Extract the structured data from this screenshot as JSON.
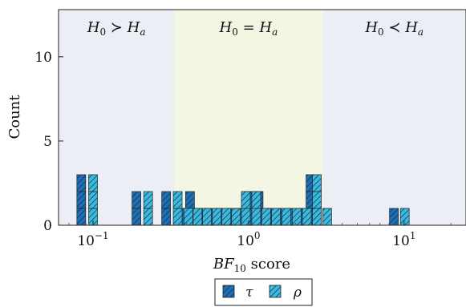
{
  "chart_data": {
    "type": "bar",
    "x_scale": "log",
    "xlim": [
      0.06,
      25
    ],
    "ylim": [
      0,
      12.8
    ],
    "xlabel": "BF10 score",
    "ylabel": "Count",
    "y_ticks": [
      0,
      5,
      10
    ],
    "x_ticks": [
      {
        "value": 0.1,
        "base": "10",
        "exp": "−1"
      },
      {
        "value": 1,
        "base": "10",
        "exp": "0"
      },
      {
        "value": 10,
        "base": "10",
        "exp": "1"
      }
    ],
    "regions": [
      {
        "from": 0.06,
        "to": 0.333,
        "label_lhs": "H0",
        "op": "≻",
        "label_rhs": "Ha",
        "color": "#ebeef5"
      },
      {
        "from": 0.333,
        "to": 3.0,
        "label_lhs": "H0",
        "op": "=",
        "label_rhs": "Ha",
        "color": "#f4f6e4"
      },
      {
        "from": 3.0,
        "to": 25,
        "label_lhs": "H0",
        "op": "≺",
        "label_rhs": "Ha",
        "color": "#ebeef5"
      }
    ],
    "series": [
      {
        "name": "τ",
        "color": "#1f6fb2",
        "x": [
          0.084,
          0.19,
          0.295,
          0.37,
          0.42,
          0.48,
          0.55,
          0.64,
          0.74,
          0.86,
          1.0,
          1.16,
          1.36,
          1.58,
          1.84,
          2.14,
          2.5,
          8.6
        ],
        "values": [
          3,
          2,
          2,
          1,
          2,
          1,
          1,
          1,
          1,
          1,
          2,
          2,
          1,
          1,
          1,
          1,
          3,
          1
        ]
      },
      {
        "name": "ρ",
        "color": "#3db9dc",
        "x": [
          0.1,
          0.226,
          0.35,
          0.41,
          0.47,
          0.54,
          0.625,
          0.72,
          0.83,
          0.96,
          1.12,
          1.3,
          1.5,
          1.75,
          2.04,
          2.37,
          2.75,
          3.2,
          10.1
        ],
        "values": [
          3,
          2,
          2,
          1,
          1,
          1,
          1,
          1,
          1,
          2,
          2,
          1,
          1,
          1,
          1,
          1,
          3,
          1,
          1
        ]
      }
    ],
    "legend": {
      "position": "bottom-center"
    }
  }
}
